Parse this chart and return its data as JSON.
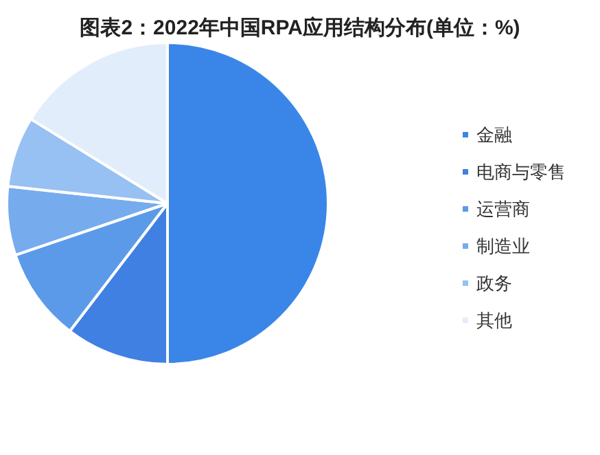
{
  "chart_data": {
    "type": "pie",
    "title": "图表2：2022年中国RPA应用结构分布(单位：%)",
    "categories": [
      "金融",
      "电商与零售",
      "运营商",
      "制造业",
      "政务",
      "其他"
    ],
    "values": [
      50,
      10.4,
      9.4,
      6.9,
      7.1,
      16.2
    ],
    "colors": [
      "#3a86e8",
      "#3f80e2",
      "#5b9ae9",
      "#76abee",
      "#97c0f3",
      "#e2edfb"
    ],
    "legend": "right"
  }
}
